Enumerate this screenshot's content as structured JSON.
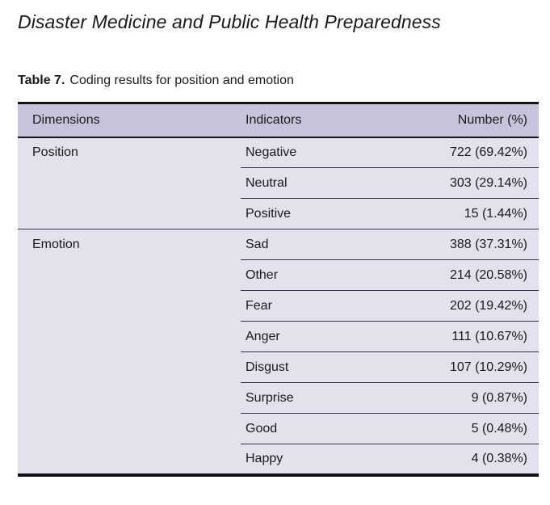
{
  "journal_title": "Disaster Medicine and Public Health Preparedness",
  "caption": {
    "label": "Table 7.",
    "text": "Coding results for position and emotion"
  },
  "table": {
    "headers": {
      "dimensions": "Dimensions",
      "indicators": "Indicators",
      "number": "Number (%)"
    },
    "groups": [
      {
        "dimension": "Position",
        "rows": [
          {
            "indicator": "Negative",
            "number": "722 (69.42%)"
          },
          {
            "indicator": "Neutral",
            "number": "303 (29.14%)"
          },
          {
            "indicator": "Positive",
            "number": "15 (1.44%)"
          }
        ]
      },
      {
        "dimension": "Emotion",
        "rows": [
          {
            "indicator": "Sad",
            "number": "388 (37.31%)"
          },
          {
            "indicator": "Other",
            "number": "214 (20.58%)"
          },
          {
            "indicator": "Fear",
            "number": "202 (19.42%)"
          },
          {
            "indicator": "Anger",
            "number": "111 (10.67%)"
          },
          {
            "indicator": "Disgust",
            "number": "107 (10.29%)"
          },
          {
            "indicator": "Surprise",
            "number": "9 (0.87%)"
          },
          {
            "indicator": "Good",
            "number": "5 (0.48%)"
          },
          {
            "indicator": "Happy",
            "number": "4 (0.38%)"
          }
        ]
      }
    ]
  },
  "colors": {
    "header_bg": "#c6c4da",
    "row_bg": "#e2e1ec",
    "border_dark": "#121219",
    "line_thin": "#31314a",
    "text": "#1a1a1a"
  }
}
